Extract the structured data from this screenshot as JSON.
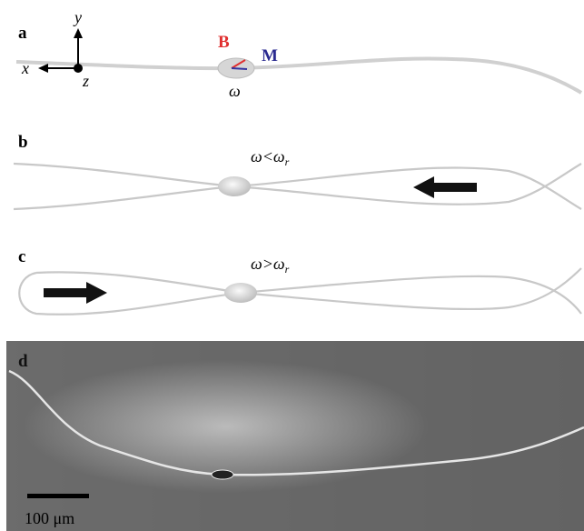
{
  "panels": [
    {
      "label": "a",
      "axes": {
        "y": "y",
        "x": "x",
        "z": "z"
      },
      "field": "B",
      "moment": "M",
      "frequency": "ω"
    },
    {
      "label": "b",
      "condition": {
        "main": "ω<ω",
        "sub": "r"
      }
    },
    {
      "label": "c",
      "condition": {
        "main": "ω>ω",
        "sub": "r"
      }
    },
    {
      "label": "d",
      "scale_bar": "100 μm"
    }
  ]
}
